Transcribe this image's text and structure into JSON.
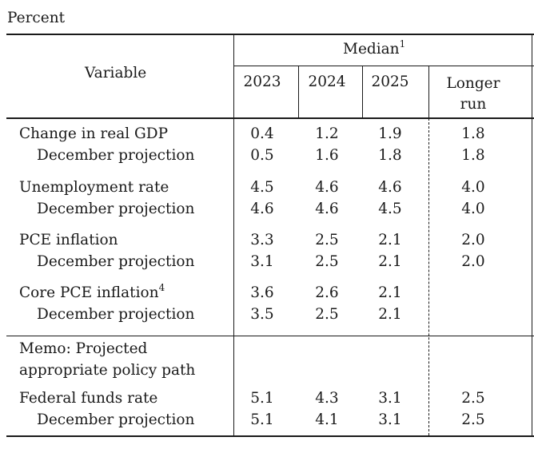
{
  "unit_label": "Percent",
  "header": {
    "variable": "Variable",
    "median": "Median",
    "median_note": "1",
    "years": [
      "2023",
      "2024",
      "2025"
    ],
    "longer_run_line1": "Longer",
    "longer_run_line2": "run"
  },
  "rows": [
    {
      "label": "Change in real GDP",
      "note": "",
      "values": [
        "0.4",
        "1.2",
        "1.9",
        "1.8"
      ]
    },
    {
      "label": "December projection",
      "note": "",
      "values": [
        "0.5",
        "1.6",
        "1.8",
        "1.8"
      ]
    },
    {
      "label": "Unemployment rate",
      "note": "",
      "values": [
        "4.5",
        "4.6",
        "4.6",
        "4.0"
      ]
    },
    {
      "label": "December projection",
      "note": "",
      "values": [
        "4.6",
        "4.6",
        "4.5",
        "4.0"
      ]
    },
    {
      "label": "PCE inflation",
      "note": "",
      "values": [
        "3.3",
        "2.5",
        "2.1",
        "2.0"
      ]
    },
    {
      "label": "December projection",
      "note": "",
      "values": [
        "3.1",
        "2.5",
        "2.1",
        "2.0"
      ]
    },
    {
      "label": "Core PCE inflation",
      "note": "4",
      "values": [
        "3.6",
        "2.6",
        "2.1",
        ""
      ]
    },
    {
      "label": "December projection",
      "note": "",
      "values": [
        "3.5",
        "2.5",
        "2.1",
        ""
      ]
    }
  ],
  "memo": {
    "line1": "Memo: Projected",
    "line2": "appropriate policy path"
  },
  "memo_rows": [
    {
      "label": "Federal funds rate",
      "values": [
        "5.1",
        "4.3",
        "3.1",
        "2.5"
      ]
    },
    {
      "label": "December projection",
      "values": [
        "5.1",
        "4.1",
        "3.1",
        "2.5"
      ]
    }
  ]
}
